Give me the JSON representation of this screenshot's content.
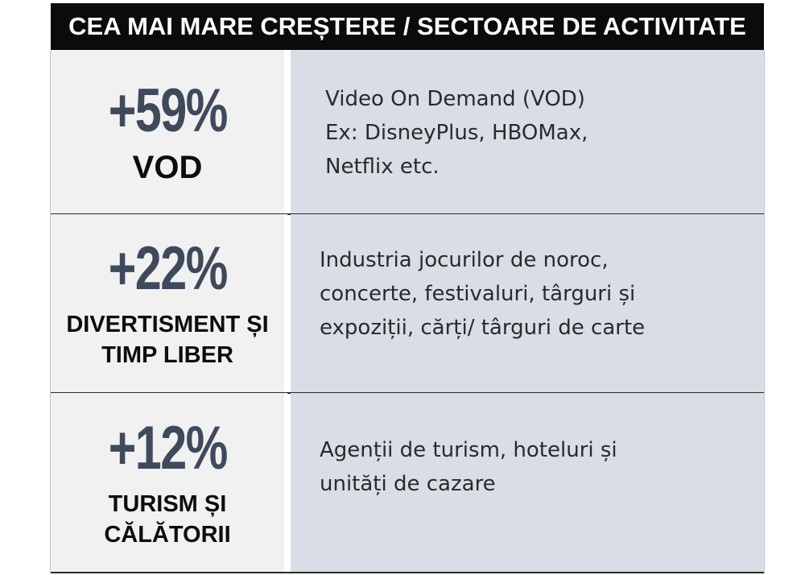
{
  "title": "CEA MAI MARE CREȘTERE / SECTOARE DE ACTIVITATE",
  "rows": [
    {
      "percent": "+59%",
      "category": "VOD",
      "description": "Video On Demand (VOD)\nEx: DisneyPlus, HBOMax,\nNetflix etc."
    },
    {
      "percent": "+22%",
      "category": "DIVERTISMENT ȘI\nTIMP LIBER",
      "description": "Industria jocurilor de noroc,\nconcerte, festivaluri, târguri și\nexpoziții, cărți/ târguri de carte"
    },
    {
      "percent": "+12%",
      "category": "TURISM ȘI\nCĂLĂTORII",
      "description": "Agenții de turism, hoteluri și\nunități de cazare"
    }
  ],
  "colors": {
    "title_bg": "#0b0b0c",
    "percent_text": "#3e4a5c",
    "left_cell_bg": "#f1f1f2",
    "right_cell_bg": "#d9dde6"
  }
}
